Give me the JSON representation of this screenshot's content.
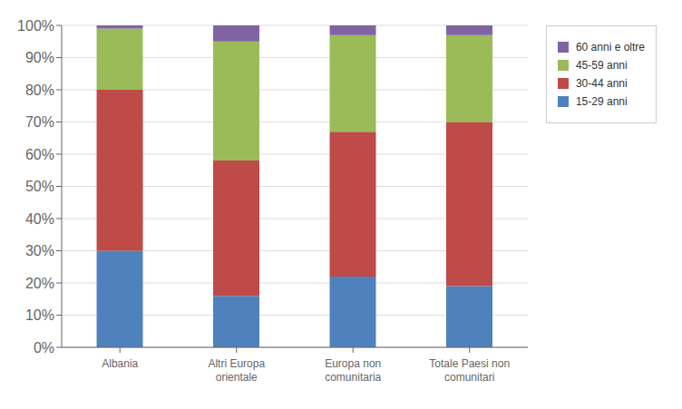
{
  "chart_data": {
    "type": "bar",
    "stacked": true,
    "grid": true,
    "legend": "right",
    "categories": [
      "Albania",
      "Altri Europa\norientale",
      "Europa non\ncomunitaria",
      "Totale Paesi non\ncomunitari"
    ],
    "series": [
      {
        "name": "15-29 anni",
        "color": "#4F81BD",
        "values": [
          30,
          16,
          22,
          19
        ]
      },
      {
        "name": "30-44 anni",
        "color": "#BE4B48",
        "values": [
          50,
          42,
          45,
          51
        ]
      },
      {
        "name": "45-59 anni",
        "color": "#9BBB59",
        "values": [
          19,
          37,
          30,
          27
        ]
      },
      {
        "name": "60 anni e oltre",
        "color": "#8064A2",
        "values": [
          1,
          5,
          3,
          3
        ]
      }
    ],
    "ylim": [
      0,
      100
    ],
    "yticks": [
      {
        "value": 0,
        "label": "0%"
      },
      {
        "value": 10,
        "label": "10%"
      },
      {
        "value": 20,
        "label": "20%"
      },
      {
        "value": 30,
        "label": "30%"
      },
      {
        "value": 40,
        "label": "40%"
      },
      {
        "value": 50,
        "label": "50%"
      },
      {
        "value": 60,
        "label": "60%"
      },
      {
        "value": 70,
        "label": "70%"
      },
      {
        "value": 80,
        "label": "80%"
      },
      {
        "value": 90,
        "label": "90%"
      },
      {
        "value": 100,
        "label": "100%"
      }
    ]
  }
}
